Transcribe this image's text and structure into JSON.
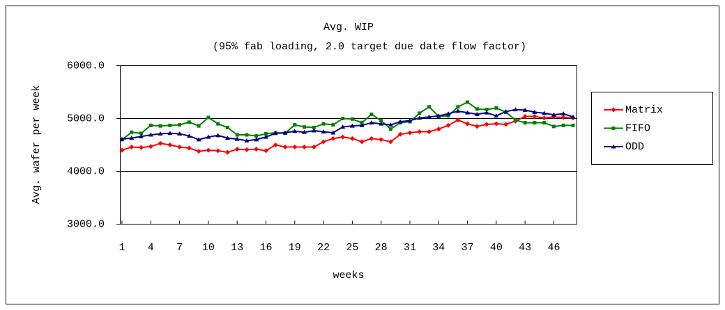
{
  "chart_data": {
    "type": "line",
    "title": "Avg. WIP",
    "subtitle": "(95% fab loading, 2.0 target due date flow factor)",
    "x_label": "weeks",
    "y_label": "Avg. wafer per week",
    "x": [
      1,
      2,
      3,
      4,
      5,
      6,
      7,
      8,
      9,
      10,
      11,
      12,
      13,
      14,
      15,
      16,
      17,
      18,
      19,
      20,
      21,
      22,
      23,
      24,
      25,
      26,
      27,
      28,
      29,
      30,
      31,
      32,
      33,
      34,
      35,
      36,
      37,
      38,
      39,
      40,
      41,
      42,
      43,
      44,
      45,
      46,
      47,
      48
    ],
    "xlim": [
      1,
      48
    ],
    "xticks": [
      1,
      4,
      7,
      10,
      13,
      16,
      19,
      22,
      25,
      28,
      31,
      34,
      37,
      40,
      43,
      46
    ],
    "ylim": [
      3000,
      6000
    ],
    "yticks": [
      {
        "value": 3000,
        "label": "3000.0"
      },
      {
        "value": 4000,
        "label": "4000.0"
      },
      {
        "value": 5000,
        "label": "5000.0"
      },
      {
        "value": 6000,
        "label": "6000.0"
      }
    ],
    "grid": true,
    "legend": "right",
    "series": [
      {
        "name": "Matrix",
        "color": "#ff0000",
        "marker": "diamond",
        "values": [
          4400,
          4460,
          4450,
          4470,
          4530,
          4500,
          4460,
          4440,
          4380,
          4400,
          4390,
          4360,
          4420,
          4410,
          4420,
          4390,
          4500,
          4460,
          4460,
          4460,
          4460,
          4560,
          4620,
          4650,
          4620,
          4560,
          4620,
          4600,
          4560,
          4700,
          4730,
          4750,
          4750,
          4800,
          4870,
          4970,
          4900,
          4850,
          4890,
          4900,
          4890,
          4950,
          5040,
          5040,
          5010,
          5030,
          5020,
          5010
        ]
      },
      {
        "name": "FIFO",
        "color": "#008000",
        "marker": "square",
        "values": [
          4600,
          4740,
          4720,
          4870,
          4860,
          4870,
          4880,
          4930,
          4860,
          5020,
          4900,
          4830,
          4690,
          4690,
          4670,
          4710,
          4730,
          4720,
          4880,
          4840,
          4830,
          4900,
          4880,
          5000,
          4990,
          4920,
          5080,
          4960,
          4800,
          4920,
          4940,
          5100,
          5220,
          5040,
          5050,
          5220,
          5310,
          5180,
          5170,
          5200,
          5120,
          4970,
          4920,
          4920,
          4920,
          4850,
          4870,
          4870
        ]
      },
      {
        "name": "ODD",
        "color": "#000080",
        "marker": "triangle",
        "values": [
          4610,
          4630,
          4660,
          4690,
          4710,
          4720,
          4710,
          4670,
          4600,
          4650,
          4680,
          4630,
          4610,
          4580,
          4600,
          4650,
          4720,
          4730,
          4760,
          4740,
          4770,
          4750,
          4730,
          4840,
          4860,
          4870,
          4920,
          4900,
          4880,
          4940,
          4960,
          5010,
          5030,
          5050,
          5090,
          5140,
          5110,
          5080,
          5110,
          5050,
          5130,
          5170,
          5160,
          5120,
          5100,
          5070,
          5090,
          5030
        ]
      }
    ]
  }
}
